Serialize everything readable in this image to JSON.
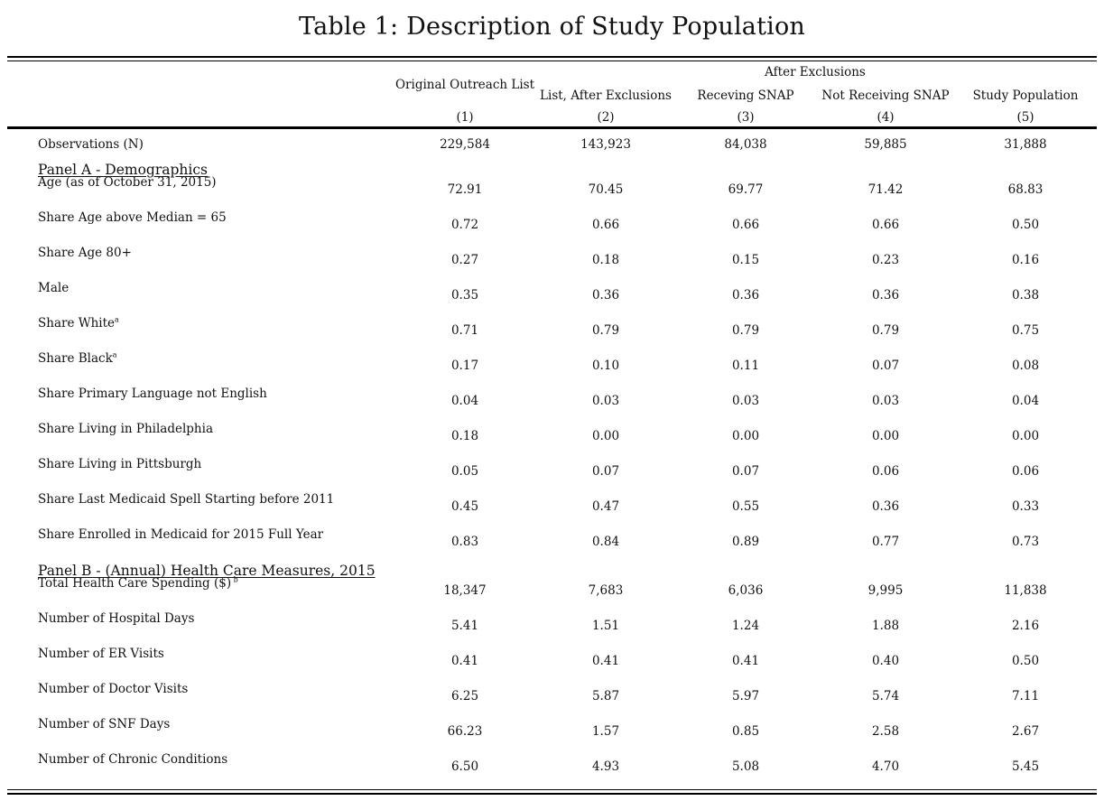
{
  "title": "Table 1: Description of Study Population",
  "header": {
    "group_label": "After Exclusions",
    "columns": [
      {
        "label": "Original Outreach List",
        "num": "(1)"
      },
      {
        "label": "List, After Exclusions",
        "num": "(2)"
      },
      {
        "label": "Receving SNAP",
        "num": "(3)"
      },
      {
        "label": "Not Receiving SNAP",
        "num": "(4)"
      },
      {
        "label": "Study Population",
        "num": "(5)"
      }
    ]
  },
  "observations": {
    "label": "Observations (N)",
    "values": [
      "229,584",
      "143,923",
      "84,038",
      "59,885",
      "31,888"
    ]
  },
  "panel_a": {
    "title": "Panel A - Demographics",
    "rows": [
      {
        "label": "Age (as of October 31, 2015)",
        "sup": "",
        "values": [
          "72.91",
          "70.45",
          "69.77",
          "71.42",
          "68.83"
        ]
      },
      {
        "label": "Share Age above Median = 65",
        "sup": "",
        "values": [
          "0.72",
          "0.66",
          "0.66",
          "0.66",
          "0.50"
        ]
      },
      {
        "label": "Share Age 80+",
        "sup": "",
        "values": [
          "0.27",
          "0.18",
          "0.15",
          "0.23",
          "0.16"
        ]
      },
      {
        "label": "Male",
        "sup": "",
        "values": [
          "0.35",
          "0.36",
          "0.36",
          "0.36",
          "0.38"
        ]
      },
      {
        "label": "Share White",
        "sup": "a",
        "values": [
          "0.71",
          "0.79",
          "0.79",
          "0.79",
          "0.75"
        ]
      },
      {
        "label": "Share Black",
        "sup": "a",
        "values": [
          "0.17",
          "0.10",
          "0.11",
          "0.07",
          "0.08"
        ]
      },
      {
        "label": "Share Primary Language not English",
        "sup": "",
        "values": [
          "0.04",
          "0.03",
          "0.03",
          "0.03",
          "0.04"
        ]
      },
      {
        "label": "Share Living in Philadelphia",
        "sup": "",
        "values": [
          "0.18",
          "0.00",
          "0.00",
          "0.00",
          "0.00"
        ]
      },
      {
        "label": "Share Living in Pittsburgh",
        "sup": "",
        "values": [
          "0.05",
          "0.07",
          "0.07",
          "0.06",
          "0.06"
        ]
      },
      {
        "label": "Share Last Medicaid Spell Starting before 2011",
        "sup": "",
        "values": [
          "0.45",
          "0.47",
          "0.55",
          "0.36",
          "0.33"
        ]
      },
      {
        "label": "Share Enrolled in Medicaid for 2015 Full Year",
        "sup": "",
        "values": [
          "0.83",
          "0.84",
          "0.89",
          "0.77",
          "0.73"
        ]
      }
    ]
  },
  "panel_b": {
    "title": "Panel B - (Annual) Health Care Measures, 2015",
    "rows": [
      {
        "label": "Total Health Care Spending ($)",
        "sup": "b",
        "values": [
          "18,347",
          "7,683",
          "6,036",
          "9,995",
          "11,838"
        ]
      },
      {
        "label": "Number of Hospital Days",
        "sup": "",
        "values": [
          "5.41",
          "1.51",
          "1.24",
          "1.88",
          "2.16"
        ]
      },
      {
        "label": "Number of ER Visits",
        "sup": "",
        "values": [
          "0.41",
          "0.41",
          "0.41",
          "0.40",
          "0.50"
        ]
      },
      {
        "label": "Number of Doctor Visits",
        "sup": "",
        "values": [
          "6.25",
          "5.87",
          "5.97",
          "5.74",
          "7.11"
        ]
      },
      {
        "label": "Number of SNF Days",
        "sup": "",
        "values": [
          "66.23",
          "1.57",
          "0.85",
          "2.58",
          "2.67"
        ]
      },
      {
        "label": "Number of Chronic Conditions",
        "sup": "",
        "values": [
          "6.50",
          "4.93",
          "5.08",
          "4.70",
          "5.45"
        ]
      }
    ]
  }
}
